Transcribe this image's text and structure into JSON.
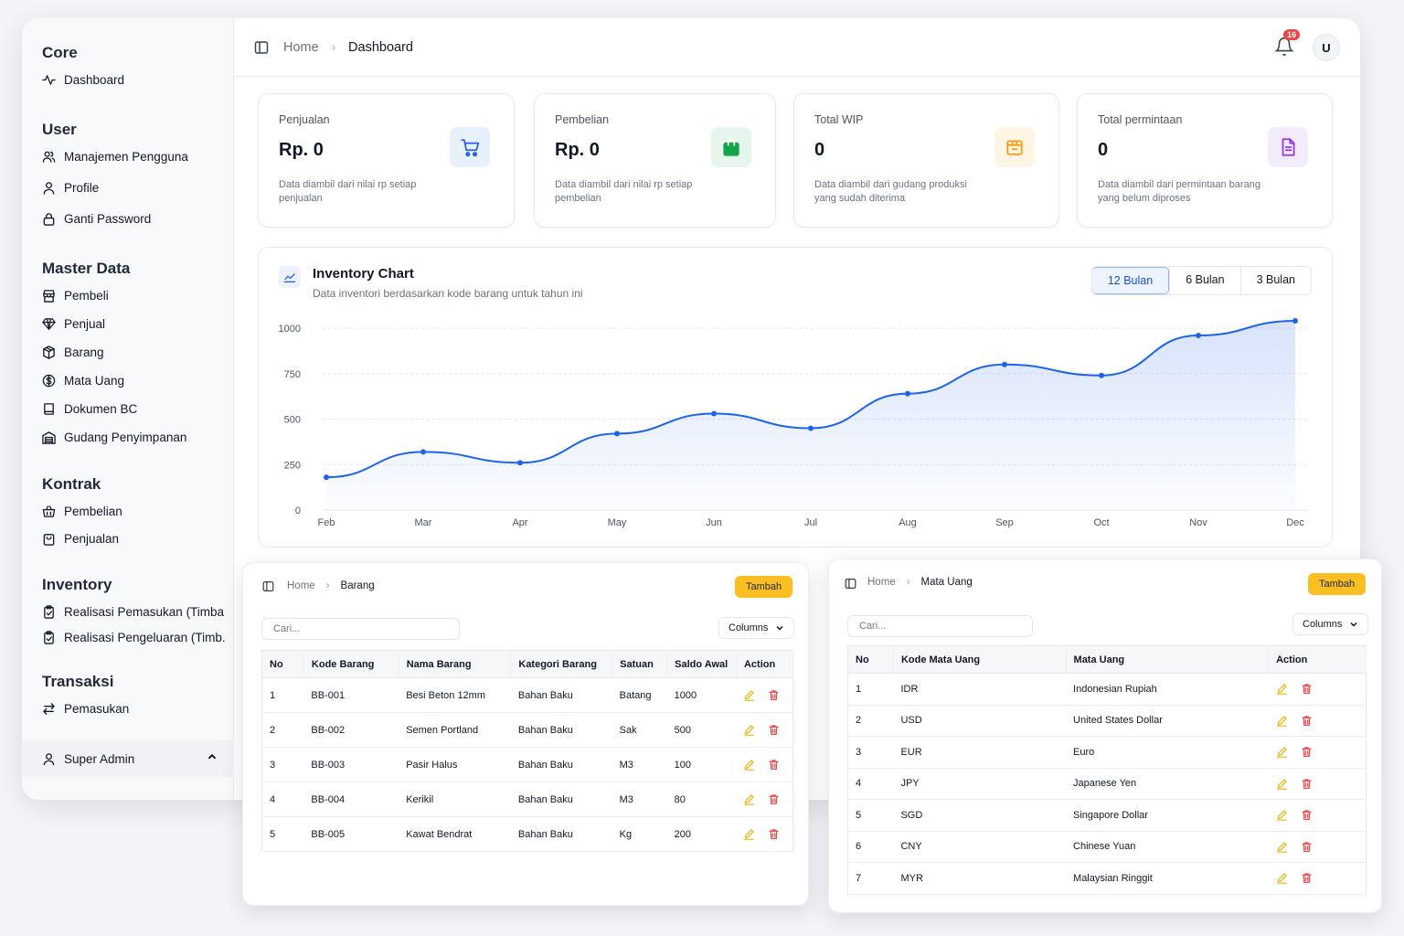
{
  "sidebar": {
    "sections": [
      {
        "title": "Core",
        "items": [
          {
            "label": "Dashboard",
            "icon": "activity-icon"
          }
        ]
      },
      {
        "title": "User",
        "items": [
          {
            "label": "Manajemen Pengguna",
            "icon": "users-icon"
          },
          {
            "label": "Profile",
            "icon": "user-icon"
          },
          {
            "label": "Ganti Password",
            "icon": "lock-icon"
          }
        ]
      },
      {
        "title": "Master Data",
        "items": [
          {
            "label": "Pembeli",
            "icon": "store-icon"
          },
          {
            "label": "Penjual",
            "icon": "gem-icon"
          },
          {
            "label": "Barang",
            "icon": "boxes-icon"
          },
          {
            "label": "Mata Uang",
            "icon": "dollar-circle-icon"
          },
          {
            "label": "Dokumen BC",
            "icon": "book-icon"
          },
          {
            "label": "Gudang Penyimpanan",
            "icon": "warehouse-icon"
          }
        ]
      },
      {
        "title": "Kontrak",
        "items": [
          {
            "label": "Pembelian",
            "icon": "basket-icon"
          },
          {
            "label": "Penjualan",
            "icon": "bag-icon"
          }
        ]
      },
      {
        "title": "Inventory",
        "items": [
          {
            "label": "Realisasi Pemasukan (Timba...",
            "icon": "clipboard-check-icon"
          },
          {
            "label": "Realisasi Pengeluaran (Timb...",
            "icon": "clipboard-check-icon"
          }
        ]
      },
      {
        "title": "Transaksi",
        "items": [
          {
            "label": "Pemasukan",
            "icon": "arrows-swap-icon"
          }
        ]
      }
    ],
    "user": "Super Admin"
  },
  "header": {
    "home": "Home",
    "current": "Dashboard",
    "notif_count": "16",
    "avatar": "U"
  },
  "cards": [
    {
      "label": "Penjualan",
      "value": "Rp. 0",
      "desc": "Data diambil dari nilai rp setiap penjualan",
      "icon": "cart-icon",
      "color": "#2563eb",
      "bg": "#e8f0fe"
    },
    {
      "label": "Pembelian",
      "value": "Rp. 0",
      "desc": "Data diambil dari nilai rp setiap pembelian",
      "icon": "shopping-bag-icon",
      "color": "#16a34a",
      "bg": "#e6f6ec"
    },
    {
      "label": "Total WIP",
      "value": "0",
      "desc": "Data diambil dari gudang produksi yang sudah diterima",
      "icon": "package-icon",
      "color": "#f59e0b",
      "bg": "#fef5e4"
    },
    {
      "label": "Total permintaan",
      "value": "0",
      "desc": "Data diambil dari permintaan barang yang belum diproses",
      "icon": "file-text-icon",
      "color": "#9333ea",
      "bg": "#f3ecfd"
    }
  ],
  "chart": {
    "title": "Inventory Chart",
    "subtitle": "Data inventori berdasarkan kode barang untuk tahun ini",
    "tabs": [
      "12 Bulan",
      "6 Bulan",
      "3 Bulan"
    ],
    "active_tab": "12 Bulan"
  },
  "chart_data": {
    "type": "area",
    "categories": [
      "Feb",
      "Mar",
      "Apr",
      "May",
      "Jun",
      "Jul",
      "Aug",
      "Sep",
      "Oct",
      "Nov",
      "Dec"
    ],
    "values": [
      180,
      320,
      260,
      420,
      530,
      450,
      640,
      800,
      740,
      960,
      1040
    ],
    "yticks": [
      0,
      250,
      500,
      750,
      1000
    ],
    "ylim": [
      0,
      1000
    ],
    "grid": true,
    "color": "#1d64e8"
  },
  "barang_panel": {
    "home": "Home",
    "current": "Barang",
    "add_label": "Tambah",
    "search_placeholder": "Cari...",
    "columns_label": "Columns",
    "headers": [
      "No",
      "Kode Barang",
      "Nama Barang",
      "Kategori Barang",
      "Satuan",
      "Saldo Awal",
      "Action"
    ],
    "rows": [
      [
        "1",
        "BB-001",
        "Besi Beton 12mm",
        "Bahan Baku",
        "Batang",
        "1000"
      ],
      [
        "2",
        "BB-002",
        "Semen Portland",
        "Bahan Baku",
        "Sak",
        "500"
      ],
      [
        "3",
        "BB-003",
        "Pasir Halus",
        "Bahan Baku",
        "M3",
        "100"
      ],
      [
        "4",
        "BB-004",
        "Kerikil",
        "Bahan Baku",
        "M3",
        "80"
      ],
      [
        "5",
        "BB-005",
        "Kawat Bendrat",
        "Bahan Baku",
        "Kg",
        "200"
      ]
    ]
  },
  "matauang_panel": {
    "home": "Home",
    "current": "Mata Uang",
    "add_label": "Tambah",
    "search_placeholder": "Cari...",
    "columns_label": "Columns",
    "headers": [
      "No",
      "Kode Mata Uang",
      "Mata Uang",
      "Action"
    ],
    "rows": [
      [
        "1",
        "IDR",
        "Indonesian Rupiah"
      ],
      [
        "2",
        "USD",
        "United States Dollar"
      ],
      [
        "3",
        "EUR",
        "Euro"
      ],
      [
        "4",
        "JPY",
        "Japanese Yen"
      ],
      [
        "5",
        "SGD",
        "Singapore Dollar"
      ],
      [
        "6",
        "CNY",
        "Chinese Yuan"
      ],
      [
        "7",
        "MYR",
        "Malaysian Ringgit"
      ]
    ]
  }
}
